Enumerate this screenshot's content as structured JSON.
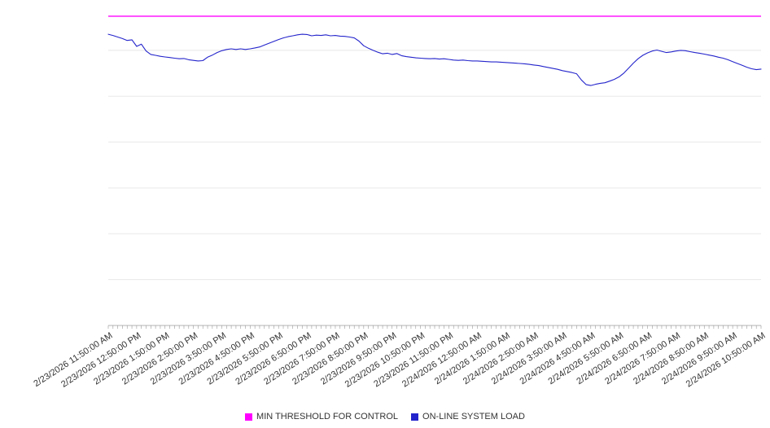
{
  "chart_data": {
    "type": "line",
    "title": "",
    "xlabel": "",
    "ylabel": "",
    "ylim": [
      0,
      100
    ],
    "grid": true,
    "legend_position": "bottom",
    "y_gridline_values": [
      0,
      14.75,
      29.5,
      44.25,
      59,
      73.75,
      88.5
    ],
    "x_labels": [
      "2/23/2026 11:50:00 AM",
      "2/23/2026 12:50:00 PM",
      "2/23/2026 1:50:00 PM",
      "2/23/2026 2:50:00 PM",
      "2/23/2026 3:50:00 PM",
      "2/23/2026 4:50:00 PM",
      "2/23/2026 5:50:00 PM",
      "2/23/2026 6:50:00 PM",
      "2/23/2026 7:50:00 PM",
      "2/23/2026 8:50:00 PM",
      "2/23/2026 9:50:00 PM",
      "2/23/2026 10:50:00 PM",
      "2/23/2026 11:50:00 PM",
      "2/24/2026 12:50:00 AM",
      "2/24/2026 1:50:00 AM",
      "2/24/2026 2:50:00 AM",
      "2/24/2026 3:50:00 AM",
      "2/24/2026 4:50:00 AM",
      "2/24/2026 5:50:00 AM",
      "2/24/2026 6:50:00 AM",
      "2/24/2026 7:50:00 AM",
      "2/24/2026 8:50:00 AM",
      "2/24/2026 9:50:00 AM",
      "2/24/2026 10:50:00 AM"
    ],
    "series": [
      {
        "name": "MIN THRESHOLD FOR CONTROL",
        "color": "#ff00ff",
        "constant": 99.5
      },
      {
        "name": "ON-LINE SYSTEM LOAD",
        "color": "#2424cc",
        "values": [
          93.7,
          93.3,
          92.8,
          92.3,
          91.7,
          91.9,
          89.8,
          90.5,
          88.3,
          87.2,
          86.9,
          86.6,
          86.4,
          86.2,
          86.0,
          85.8,
          85.9,
          85.5,
          85.3,
          85.1,
          85.2,
          86.3,
          87.0,
          87.8,
          88.4,
          88.8,
          89.0,
          88.8,
          89.0,
          88.8,
          89.0,
          89.3,
          89.6,
          90.2,
          90.8,
          91.4,
          92.0,
          92.5,
          92.9,
          93.2,
          93.5,
          93.7,
          93.6,
          93.2,
          93.4,
          93.3,
          93.5,
          93.2,
          93.3,
          93.1,
          93.0,
          92.8,
          92.5,
          91.5,
          90.0,
          89.2,
          88.5,
          87.9,
          87.4,
          87.6,
          87.2,
          87.5,
          86.8,
          86.5,
          86.3,
          86.1,
          86.0,
          85.9,
          85.8,
          85.9,
          85.7,
          85.8,
          85.6,
          85.4,
          85.3,
          85.4,
          85.2,
          85.1,
          85.1,
          85.0,
          84.9,
          84.8,
          84.8,
          84.7,
          84.6,
          84.5,
          84.4,
          84.3,
          84.2,
          84.0,
          83.8,
          83.6,
          83.3,
          83.0,
          82.7,
          82.4,
          82.0,
          81.7,
          81.4,
          81.0,
          79.0,
          77.5,
          77.2,
          77.6,
          77.9,
          78.1,
          78.6,
          79.2,
          80.0,
          81.2,
          82.8,
          84.4,
          85.8,
          86.9,
          87.7,
          88.3,
          88.6,
          88.2,
          87.8,
          88.0,
          88.3,
          88.5,
          88.4,
          88.1,
          87.8,
          87.6,
          87.3,
          87.0,
          86.7,
          86.3,
          86.0,
          85.5,
          84.9,
          84.3,
          83.7,
          83.1,
          82.6,
          82.3,
          82.5
        ]
      }
    ]
  }
}
